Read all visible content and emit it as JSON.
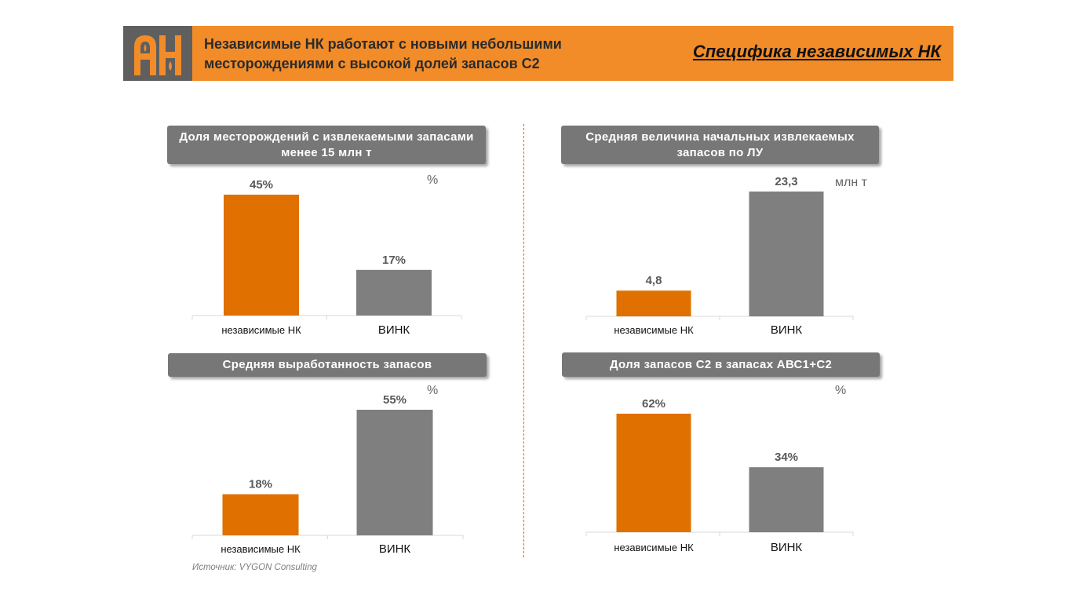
{
  "header": {
    "title_line1": "Независимые НК работают с новыми небольшими",
    "title_line2": "месторождениями с высокой долей запасов С2",
    "section_title": "Специфика независимых НК",
    "logo_text": "АН",
    "colors": {
      "band": "#f28c28",
      "logo_bg": "#5f5f5f"
    }
  },
  "colors": {
    "independent": "#e07000",
    "vink": "#7f7f7f",
    "title_box": "#777777"
  },
  "chart_data": [
    {
      "type": "bar",
      "title": "Доля месторождений с извлекаемыми запасами менее 15 млн т",
      "unit": "%",
      "categories": [
        "независимые НК",
        "ВИНК"
      ],
      "values": [
        45,
        17
      ],
      "labels": [
        "45%",
        "17%"
      ],
      "ylim": [
        0,
        45
      ]
    },
    {
      "type": "bar",
      "title": "Средняя величина начальных извлекаемых запасов по ЛУ",
      "unit": "млн т",
      "categories": [
        "независимые НК",
        "ВИНК"
      ],
      "values": [
        4.8,
        23.3
      ],
      "labels": [
        "4,8",
        "23,3"
      ],
      "ylim": [
        0,
        23.3
      ]
    },
    {
      "type": "bar",
      "title": "Средняя выработанность запасов",
      "unit": "%",
      "categories": [
        "независимые НК",
        "ВИНК"
      ],
      "values": [
        18,
        55
      ],
      "labels": [
        "18%",
        "55%"
      ],
      "ylim": [
        0,
        55
      ]
    },
    {
      "type": "bar",
      "title": "Доля запасов С2 в запасах АВС1+С2",
      "unit": "%",
      "categories": [
        "независимые НК",
        "ВИНК"
      ],
      "values": [
        62,
        34
      ],
      "labels": [
        "62%",
        "34%"
      ],
      "ylim": [
        0,
        62
      ]
    }
  ],
  "source": "Источник: VYGON Consulting"
}
